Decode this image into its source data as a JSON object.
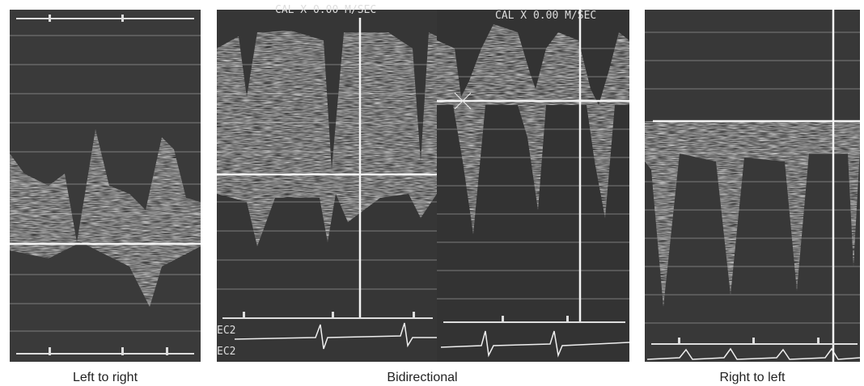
{
  "figure": {
    "panels": [
      {
        "caption": "Left to right"
      },
      {
        "caption": "Bidirectional"
      },
      {
        "caption": "Right to left"
      }
    ],
    "overlays": {
      "cal_left": "CAL X 0.00 M/SEC",
      "cal_right": "CAL X 0.00 M/SEC",
      "ecg_label_1": "EC2",
      "ecg_label_2": "EC2"
    }
  }
}
